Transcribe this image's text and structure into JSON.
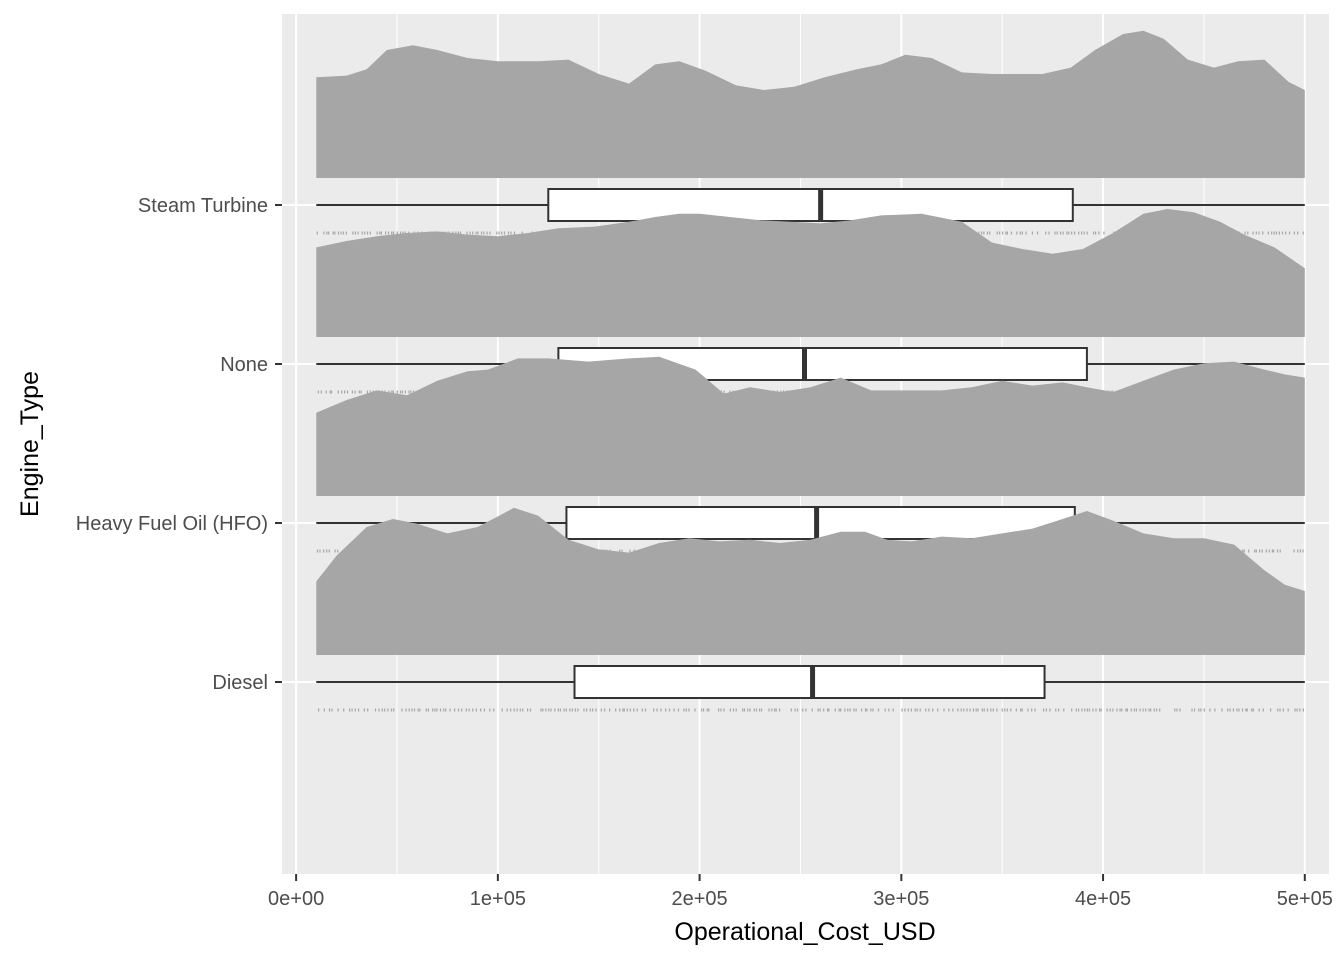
{
  "chart_data": {
    "type": "raincloud",
    "xlabel": "Operational_Cost_USD",
    "ylabel": "Engine_Type",
    "xlim": [
      -7000,
      512000
    ],
    "x_ticks": [
      0,
      100000,
      200000,
      300000,
      400000,
      500000
    ],
    "x_tick_labels": [
      "0e+00",
      "1e+05",
      "2e+05",
      "3e+05",
      "4e+05",
      "5e+05"
    ],
    "categories": [
      "Diesel",
      "Heavy Fuel Oil (HFO)",
      "None",
      "Steam Turbine"
    ],
    "grid": true,
    "panel_color": "#ebebeb",
    "density_color": "#a6a6a6",
    "groups": [
      {
        "name": "Diesel",
        "box": {
          "min": 10000,
          "q1": 138000,
          "median": 256000,
          "q3": 371000,
          "max": 500000
        },
        "density": [
          [
            10000,
            0.46
          ],
          [
            20000,
            0.62
          ],
          [
            35000,
            0.8
          ],
          [
            48000,
            0.85
          ],
          [
            60000,
            0.82
          ],
          [
            75000,
            0.76
          ],
          [
            90000,
            0.8
          ],
          [
            108000,
            0.92
          ],
          [
            120000,
            0.87
          ],
          [
            135000,
            0.72
          ],
          [
            150000,
            0.66
          ],
          [
            165000,
            0.64
          ],
          [
            180000,
            0.7
          ],
          [
            195000,
            0.73
          ],
          [
            210000,
            0.71
          ],
          [
            225000,
            0.72
          ],
          [
            240000,
            0.7
          ],
          [
            255000,
            0.72
          ],
          [
            270000,
            0.77
          ],
          [
            282000,
            0.77
          ],
          [
            293000,
            0.72
          ],
          [
            305000,
            0.71
          ],
          [
            320000,
            0.74
          ],
          [
            335000,
            0.73
          ],
          [
            350000,
            0.76
          ],
          [
            365000,
            0.79
          ],
          [
            380000,
            0.85
          ],
          [
            392000,
            0.9
          ],
          [
            405000,
            0.84
          ],
          [
            420000,
            0.76
          ],
          [
            435000,
            0.73
          ],
          [
            450000,
            0.73
          ],
          [
            465000,
            0.69
          ],
          [
            480000,
            0.53
          ],
          [
            490000,
            0.44
          ],
          [
            500000,
            0.4
          ]
        ]
      },
      {
        "name": "Heavy Fuel Oil (HFO)",
        "box": {
          "min": 10000,
          "q1": 134000,
          "median": 258000,
          "q3": 386000,
          "max": 500000
        },
        "density": [
          [
            10000,
            0.52
          ],
          [
            25000,
            0.6
          ],
          [
            40000,
            0.66
          ],
          [
            55000,
            0.63
          ],
          [
            70000,
            0.72
          ],
          [
            85000,
            0.78
          ],
          [
            95000,
            0.79
          ],
          [
            110000,
            0.86
          ],
          [
            125000,
            0.86
          ],
          [
            145000,
            0.84
          ],
          [
            165000,
            0.86
          ],
          [
            180000,
            0.87
          ],
          [
            198000,
            0.79
          ],
          [
            212000,
            0.64
          ],
          [
            225000,
            0.68
          ],
          [
            240000,
            0.65
          ],
          [
            255000,
            0.68
          ],
          [
            270000,
            0.74
          ],
          [
            285000,
            0.66
          ],
          [
            300000,
            0.66
          ],
          [
            320000,
            0.66
          ],
          [
            335000,
            0.68
          ],
          [
            350000,
            0.72
          ],
          [
            365000,
            0.69
          ],
          [
            380000,
            0.71
          ],
          [
            392000,
            0.68
          ],
          [
            405000,
            0.65
          ],
          [
            420000,
            0.72
          ],
          [
            435000,
            0.79
          ],
          [
            450000,
            0.83
          ],
          [
            465000,
            0.84
          ],
          [
            480000,
            0.79
          ],
          [
            490000,
            0.76
          ],
          [
            500000,
            0.74
          ]
        ]
      },
      {
        "name": "None",
        "box": {
          "min": 10000,
          "q1": 130000,
          "median": 252000,
          "q3": 392000,
          "max": 500000
        },
        "density": [
          [
            10000,
            0.56
          ],
          [
            25000,
            0.6
          ],
          [
            40000,
            0.63
          ],
          [
            55000,
            0.65
          ],
          [
            70000,
            0.66
          ],
          [
            85000,
            0.64
          ],
          [
            100000,
            0.63
          ],
          [
            115000,
            0.65
          ],
          [
            130000,
            0.68
          ],
          [
            148000,
            0.69
          ],
          [
            165000,
            0.72
          ],
          [
            178000,
            0.75
          ],
          [
            190000,
            0.77
          ],
          [
            200000,
            0.77
          ],
          [
            215000,
            0.75
          ],
          [
            230000,
            0.73
          ],
          [
            245000,
            0.72
          ],
          [
            260000,
            0.71
          ],
          [
            275000,
            0.73
          ],
          [
            290000,
            0.76
          ],
          [
            310000,
            0.77
          ],
          [
            330000,
            0.72
          ],
          [
            345000,
            0.59
          ],
          [
            360000,
            0.55
          ],
          [
            375000,
            0.52
          ],
          [
            390000,
            0.55
          ],
          [
            405000,
            0.65
          ],
          [
            420000,
            0.77
          ],
          [
            432000,
            0.8
          ],
          [
            445000,
            0.78
          ],
          [
            458000,
            0.72
          ],
          [
            470000,
            0.64
          ],
          [
            485000,
            0.56
          ],
          [
            500000,
            0.43
          ]
        ]
      },
      {
        "name": "Steam Turbine",
        "box": {
          "min": 10000,
          "q1": 125000,
          "median": 260000,
          "q3": 385000,
          "max": 500000
        },
        "density": [
          [
            10000,
            0.63
          ],
          [
            25000,
            0.64
          ],
          [
            35000,
            0.68
          ],
          [
            45000,
            0.8
          ],
          [
            58000,
            0.83
          ],
          [
            70000,
            0.8
          ],
          [
            85000,
            0.75
          ],
          [
            100000,
            0.73
          ],
          [
            120000,
            0.73
          ],
          [
            135000,
            0.74
          ],
          [
            150000,
            0.65
          ],
          [
            165000,
            0.59
          ],
          [
            178000,
            0.71
          ],
          [
            190000,
            0.73
          ],
          [
            203000,
            0.67
          ],
          [
            218000,
            0.58
          ],
          [
            232000,
            0.55
          ],
          [
            247000,
            0.57
          ],
          [
            262000,
            0.63
          ],
          [
            278000,
            0.68
          ],
          [
            290000,
            0.71
          ],
          [
            302000,
            0.77
          ],
          [
            315000,
            0.75
          ],
          [
            330000,
            0.66
          ],
          [
            345000,
            0.65
          ],
          [
            358000,
            0.65
          ],
          [
            370000,
            0.65
          ],
          [
            384000,
            0.69
          ],
          [
            396000,
            0.8
          ],
          [
            410000,
            0.9
          ],
          [
            420000,
            0.92
          ],
          [
            430000,
            0.87
          ],
          [
            442000,
            0.74
          ],
          [
            455000,
            0.69
          ],
          [
            467000,
            0.73
          ],
          [
            480000,
            0.74
          ],
          [
            492000,
            0.6
          ],
          [
            500000,
            0.55
          ]
        ]
      }
    ]
  }
}
